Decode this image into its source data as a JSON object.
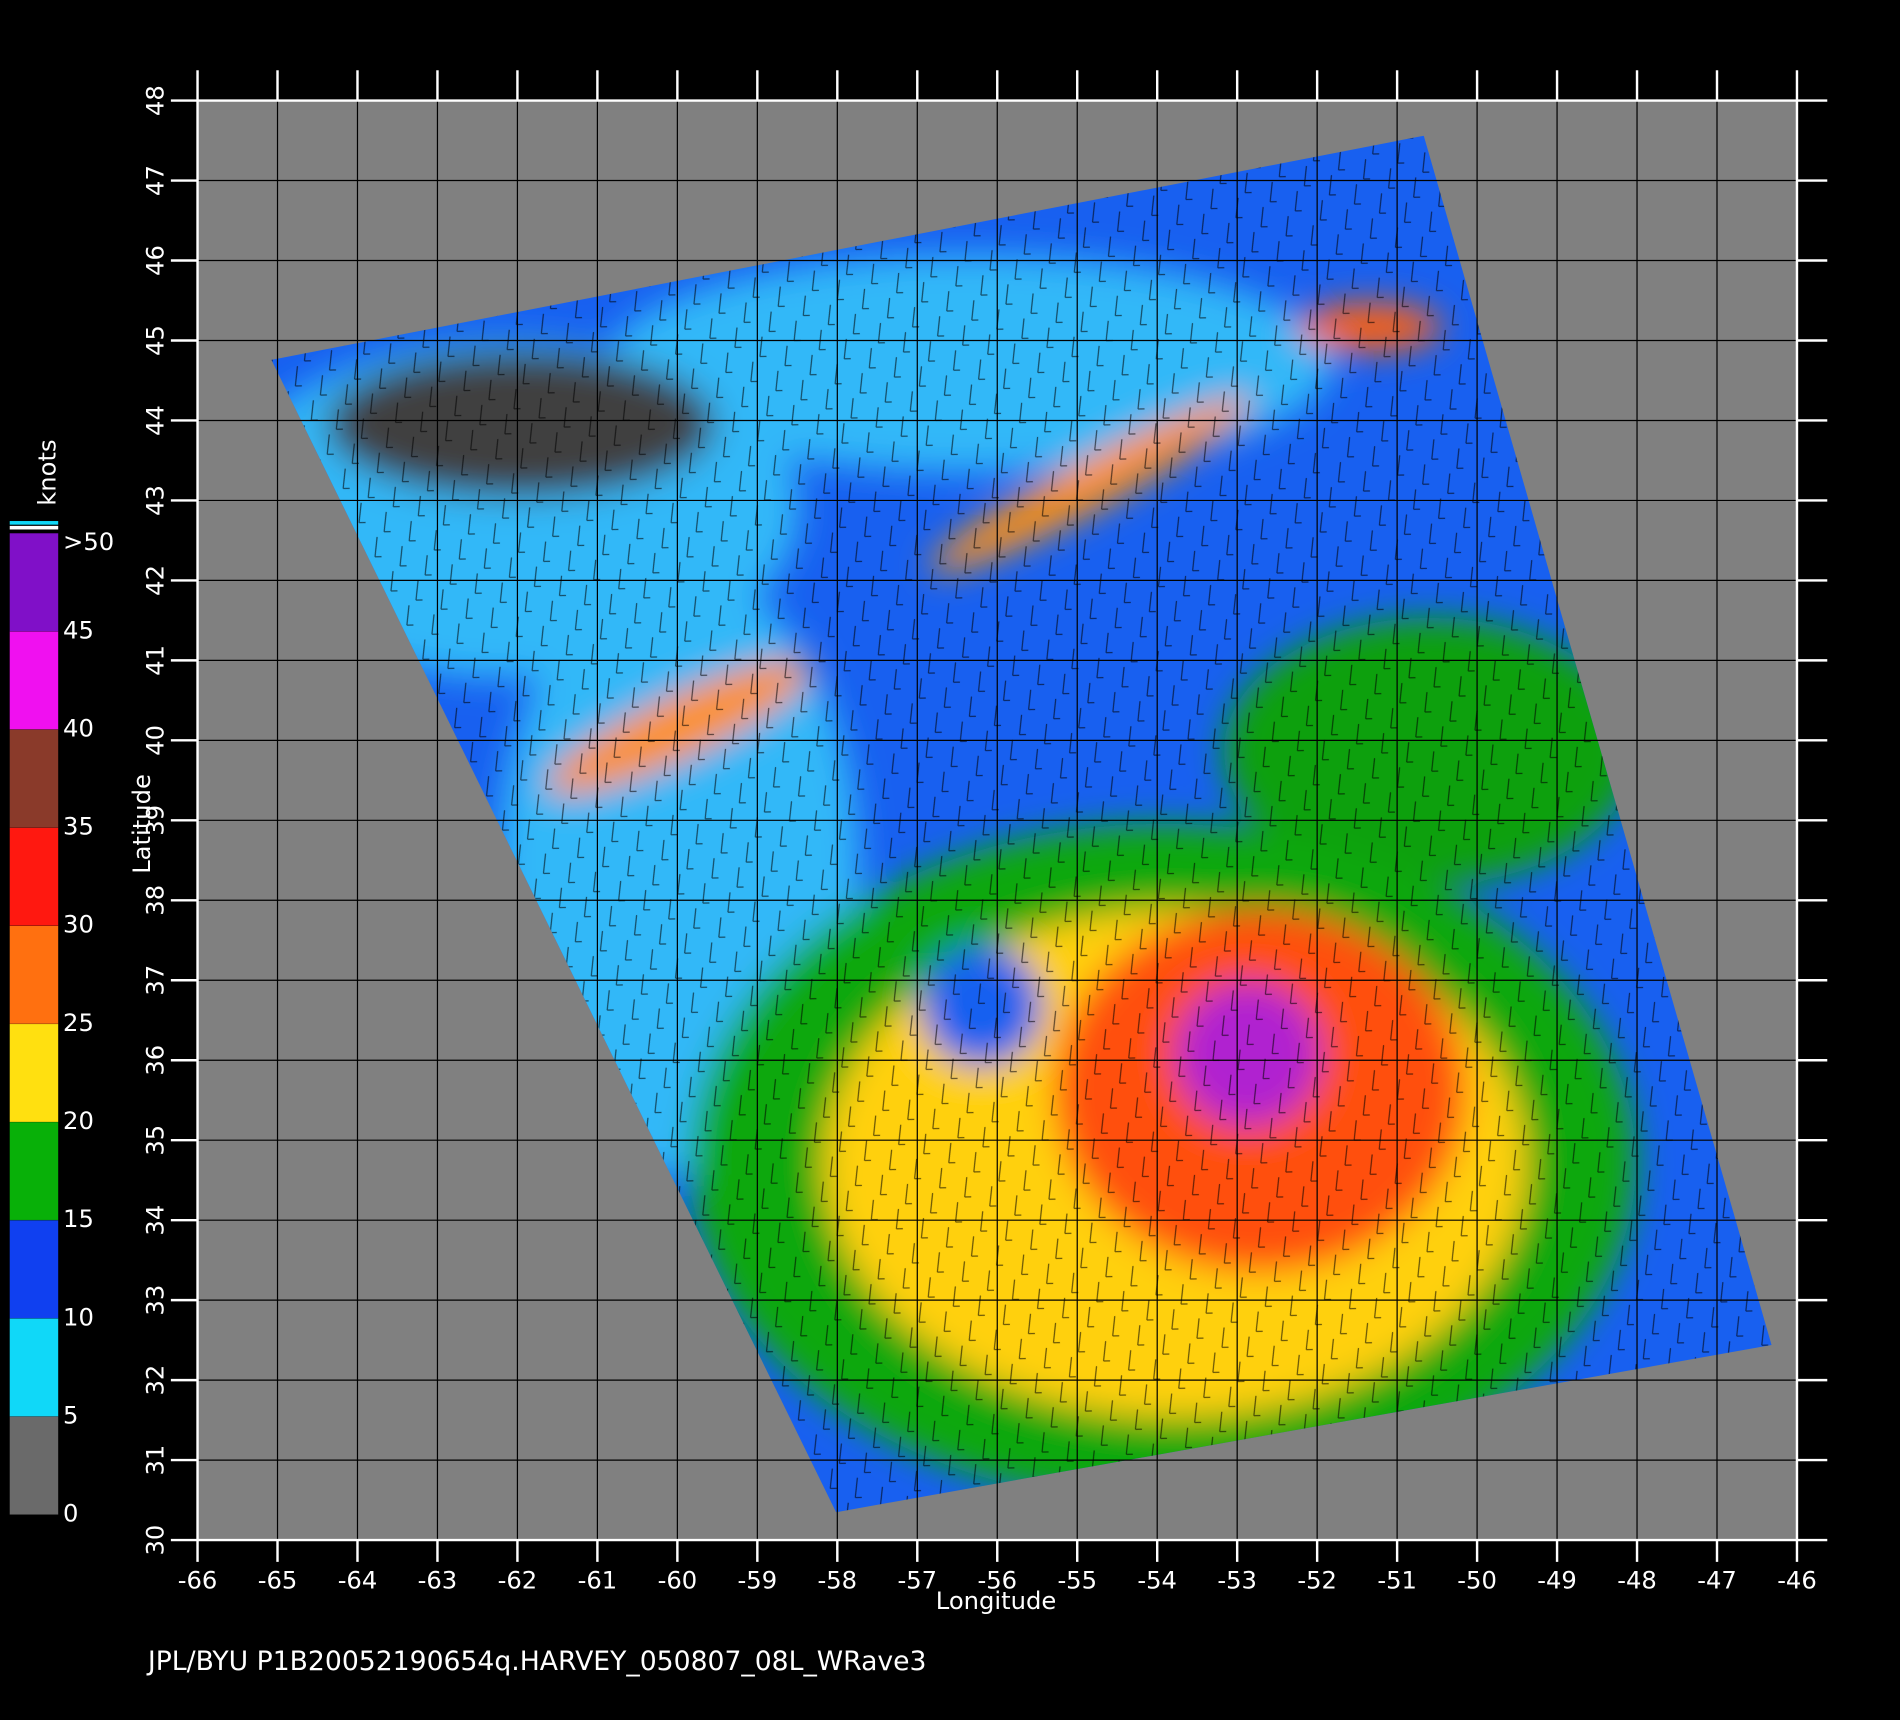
{
  "footer": "JPL/BYU  P1B20052190654q.HARVEY_050807_08L_WRave3",
  "map": {
    "xlabel": "Longitude",
    "ylabel": "Latitude",
    "xlim": [
      -66,
      -46
    ],
    "ylim": [
      30,
      48
    ],
    "xticks": [
      -66,
      -65,
      -64,
      -63,
      -62,
      -61,
      -60,
      -59,
      -58,
      -57,
      -56,
      -55,
      -54,
      -53,
      -52,
      -51,
      -50,
      -49,
      -48,
      -47,
      -46
    ],
    "yticks": [
      30,
      31,
      32,
      33,
      34,
      35,
      36,
      37,
      38,
      39,
      40,
      41,
      42,
      43,
      44,
      45,
      46,
      47,
      48
    ],
    "grid": true
  },
  "colorbar": {
    "label": "knots",
    "lim": [
      0,
      50
    ],
    "ticks": [
      0,
      5,
      10,
      15,
      20,
      25,
      30,
      35,
      40,
      {
        "value": 50,
        "label": ">50"
      },
      45
    ],
    "colors": [
      "#6a6a6a",
      "#10d8f8",
      "#1040f0",
      "#08b008",
      "#ffe010",
      "#ff7010",
      "#ff1810",
      "#8a3a2a",
      "#f010f0",
      "#8010c8"
    ]
  }
}
